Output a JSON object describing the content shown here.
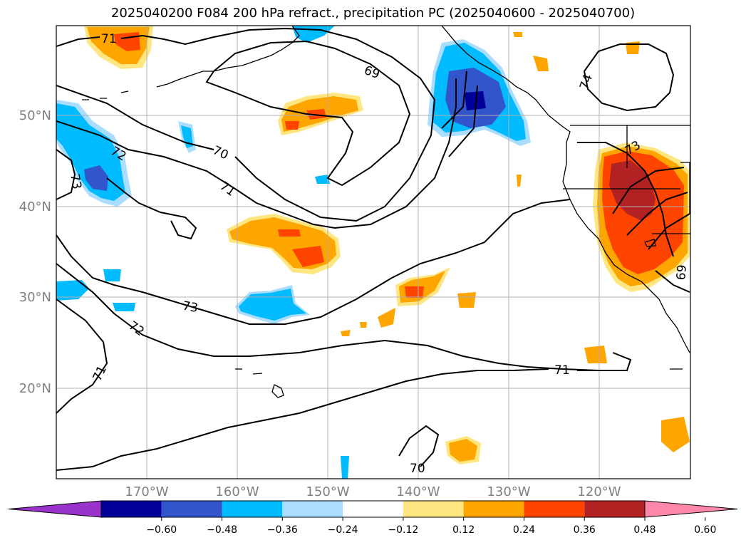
{
  "title": "2025040200 F084 200 hPa refract., precipitation PC (2025040600 - 2025040700)",
  "lat_labels": [
    "50°N",
    "40°N",
    "30°N",
    "20°N"
  ],
  "lon_labels": [
    "170°W",
    "160°W",
    "150°W",
    "140°W",
    "130°W",
    "120°W"
  ],
  "contour_labels": [
    "71",
    "69",
    "74",
    "72",
    "73",
    "70",
    "71",
    "73",
    "72",
    "71",
    "71",
    "70",
    "73",
    "69"
  ],
  "colorbar": {
    "ticks": [
      "−0.60",
      "−0.48",
      "−0.36",
      "−0.24",
      "−0.12",
      "0.12",
      "0.24",
      "0.36",
      "0.48",
      "0.60"
    ],
    "colors": [
      "#9933cc",
      "#000099",
      "#3355cc",
      "#00bbff",
      "#aaddff",
      "#ffffff",
      "#ffe680",
      "#ffa500",
      "#ff4400",
      "#b22222",
      "#ff88aa"
    ]
  },
  "colors": {
    "coast": "#000000",
    "grid": "#b0b0b0",
    "contour": "#000000"
  }
}
